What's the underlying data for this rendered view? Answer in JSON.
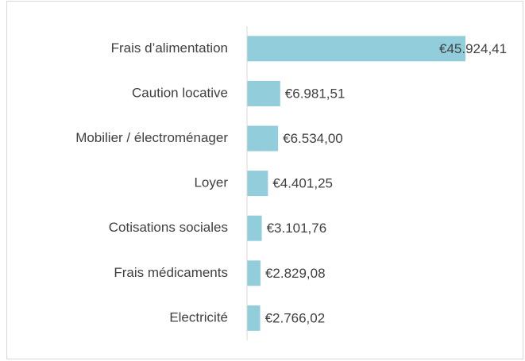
{
  "chart_data": {
    "type": "bar",
    "orientation": "horizontal",
    "categories": [
      "Frais d’alimentation",
      "Caution locative",
      "Mobilier / électroménager",
      "Loyer",
      "Cotisations sociales",
      "Frais médicaments",
      "Electricité"
    ],
    "values": [
      45924.41,
      6981.51,
      6534.0,
      4401.25,
      3101.76,
      2829.08,
      2766.02
    ],
    "value_labels": [
      "€45.924,41",
      "€6.981,51",
      "€6.534,00",
      "€4.401,25",
      "€3.101,76",
      "€2.829,08",
      "€2.766,02"
    ],
    "color": "#92cddc"
  }
}
